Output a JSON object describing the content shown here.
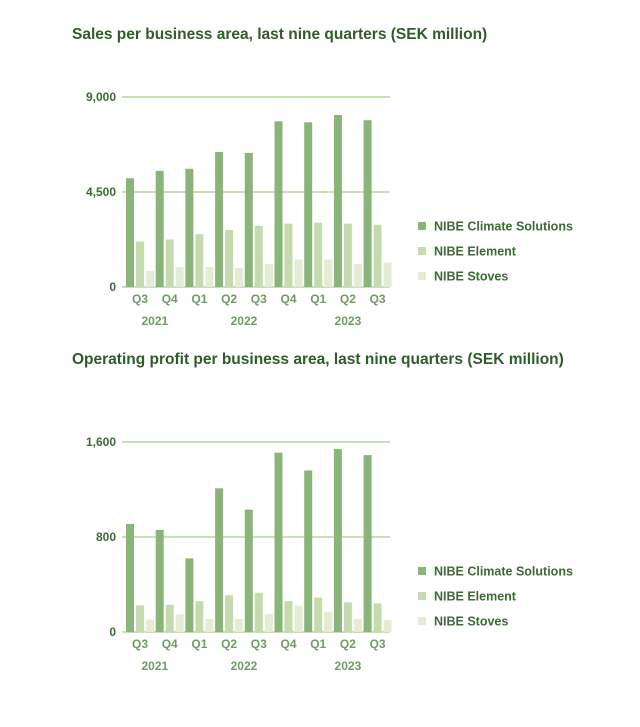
{
  "colors": {
    "series": [
      "#8ab579",
      "#c6dbad",
      "#e4edd3"
    ],
    "grid": "#b9d39f",
    "title": "#2f5d2a"
  },
  "chart_data": [
    {
      "type": "bar",
      "title": "Sales per business area, last nine quarters (SEK million)",
      "categories": [
        "Q3",
        "Q4",
        "Q1",
        "Q2",
        "Q3",
        "Q4",
        "Q1",
        "Q2",
        "Q3"
      ],
      "year_labels": [
        {
          "label": "2021",
          "category_index": 0.5
        },
        {
          "label": "2022",
          "category_index": 3.5
        },
        {
          "label": "2023",
          "category_index": 7
        }
      ],
      "yticks": [
        0,
        4500,
        9000
      ],
      "ytick_labels": [
        "0",
        "4,500",
        "9,000"
      ],
      "ylim": [
        0,
        9000
      ],
      "grid": true,
      "legend_position": "right",
      "series": [
        {
          "name": "NIBE Climate Solutions",
          "values": [
            5150,
            5500,
            5600,
            6400,
            6350,
            7850,
            7800,
            8150,
            7900
          ]
        },
        {
          "name": "NIBE Element",
          "values": [
            2150,
            2250,
            2500,
            2700,
            2900,
            3000,
            3050,
            3000,
            2950
          ]
        },
        {
          "name": "NIBE Stoves",
          "values": [
            750,
            950,
            950,
            900,
            1100,
            1300,
            1300,
            1100,
            1150
          ]
        }
      ]
    },
    {
      "type": "bar",
      "title": "Operating profit per business area, last nine quarters (SEK million)",
      "categories": [
        "Q3",
        "Q4",
        "Q1",
        "Q2",
        "Q3",
        "Q4",
        "Q1",
        "Q2",
        "Q3"
      ],
      "year_labels": [
        {
          "label": "2021",
          "category_index": 0.5
        },
        {
          "label": "2022",
          "category_index": 3.5
        },
        {
          "label": "2023",
          "category_index": 7
        }
      ],
      "yticks": [
        0,
        800,
        1600
      ],
      "ytick_labels": [
        "0",
        "800",
        "1,600"
      ],
      "ylim": [
        0,
        1600
      ],
      "grid": true,
      "legend_position": "right",
      "series": [
        {
          "name": "NIBE Climate Solutions",
          "values": [
            910,
            860,
            620,
            1210,
            1030,
            1510,
            1360,
            1540,
            1490
          ]
        },
        {
          "name": "NIBE Element",
          "values": [
            225,
            230,
            260,
            310,
            330,
            260,
            290,
            250,
            240
          ]
        },
        {
          "name": "NIBE Stoves",
          "values": [
            105,
            150,
            110,
            110,
            150,
            220,
            170,
            110,
            100
          ]
        }
      ]
    }
  ]
}
